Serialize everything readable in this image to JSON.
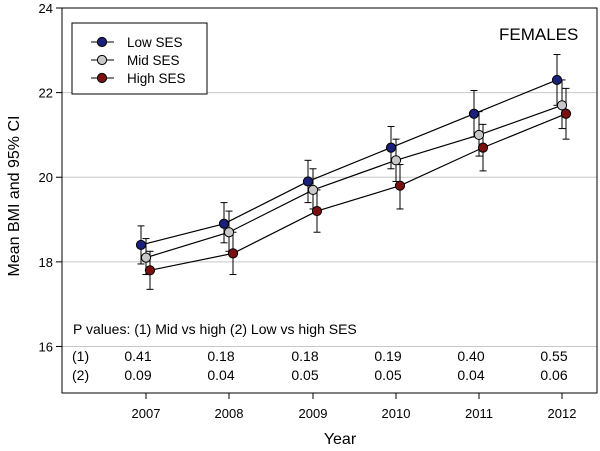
{
  "chart_data": {
    "type": "line",
    "xlabel": "Year",
    "ylabel": "Mean BMI and 95% CI",
    "panel_label": "FEMALES",
    "categories": [
      "2007",
      "2008",
      "2009",
      "2010",
      "2011",
      "2012"
    ],
    "ylim": [
      14.9,
      24
    ],
    "yticks": [
      16,
      18,
      20,
      22,
      24
    ],
    "grid": "horizontal",
    "legend_position": "top-left",
    "series": [
      {
        "name": "Low SES",
        "color": "#1a1f7a",
        "values": [
          18.4,
          18.9,
          19.9,
          20.7,
          21.5,
          22.3
        ],
        "ci_low": [
          17.95,
          18.45,
          19.4,
          20.2,
          20.95,
          21.7
        ],
        "ci_high": [
          18.85,
          19.4,
          20.4,
          21.2,
          22.05,
          22.9
        ]
      },
      {
        "name": "Mid SES",
        "color": "#c8c8c8",
        "values": [
          18.1,
          18.7,
          19.7,
          20.4,
          21.0,
          21.7
        ],
        "ci_low": [
          17.7,
          18.25,
          19.25,
          19.9,
          20.5,
          21.15
        ],
        "ci_high": [
          18.55,
          19.2,
          20.2,
          20.9,
          21.55,
          22.3
        ]
      },
      {
        "name": "High SES",
        "color": "#7a1010",
        "values": [
          17.8,
          18.2,
          19.2,
          19.8,
          20.7,
          21.5
        ],
        "ci_low": [
          17.35,
          17.7,
          18.7,
          19.25,
          20.15,
          20.9
        ],
        "ci_high": [
          18.25,
          18.7,
          19.7,
          20.3,
          21.25,
          22.1
        ]
      }
    ],
    "pvalues": {
      "header": "P values: (1) Mid vs high (2) Low vs high SES",
      "rows": [
        {
          "label": "(1)",
          "values": [
            "0.41",
            "0.18",
            "0.18",
            "0.19",
            "0.40",
            "0.55"
          ]
        },
        {
          "label": "(2)",
          "values": [
            "0.09",
            "0.04",
            "0.05",
            "0.05",
            "0.04",
            "0.06"
          ]
        }
      ]
    }
  }
}
